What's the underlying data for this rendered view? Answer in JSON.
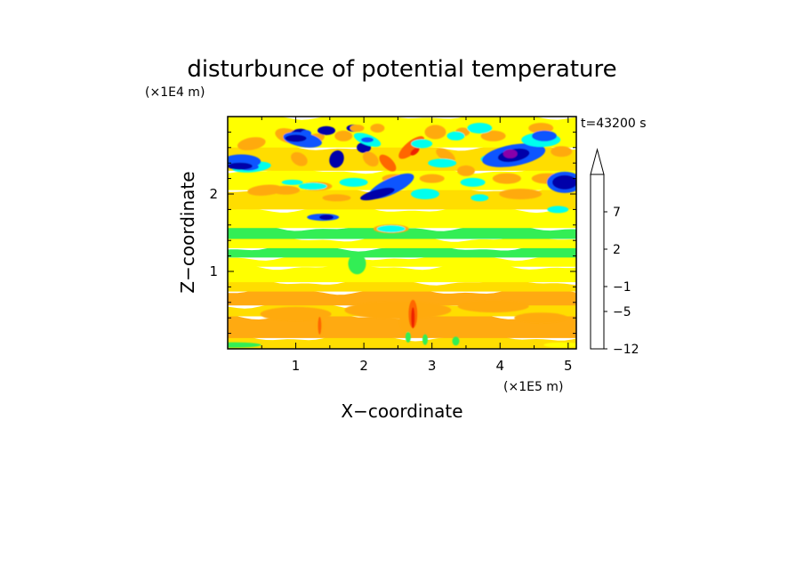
{
  "chart_data": {
    "type": "heatmap",
    "title": "disturbunce of potential temperature",
    "time_label": "t=43200 s",
    "xlabel": "X−coordinate",
    "ylabel": "Z−coordinate",
    "x_unit": "(×1E5 m)",
    "y_unit": "(×1E4 m)",
    "xlim": [
      0,
      5.12
    ],
    "ylim": [
      0,
      3.0
    ],
    "x_ticks": [
      "1",
      "2",
      "3",
      "4",
      "5"
    ],
    "y_ticks": [
      "1",
      "2"
    ],
    "colorbar": {
      "levels": [
        -12,
        -9,
        -7,
        -5,
        -3,
        -1,
        0,
        1,
        2,
        3,
        5,
        7,
        9,
        11
      ],
      "tick_labels": [
        "7",
        "2",
        "−1",
        "−5",
        "−12"
      ],
      "colors": [
        "#ff33cc",
        "#cc11aa",
        "#8800aa",
        "#0000aa",
        "#1155ff",
        "#00ffee",
        "#33ee55",
        "#ffff00",
        "#ffdd00",
        "#ffaa11",
        "#ff6600",
        "#ee2200",
        "#ff8888",
        "#ffbbbb"
      ]
    }
  }
}
